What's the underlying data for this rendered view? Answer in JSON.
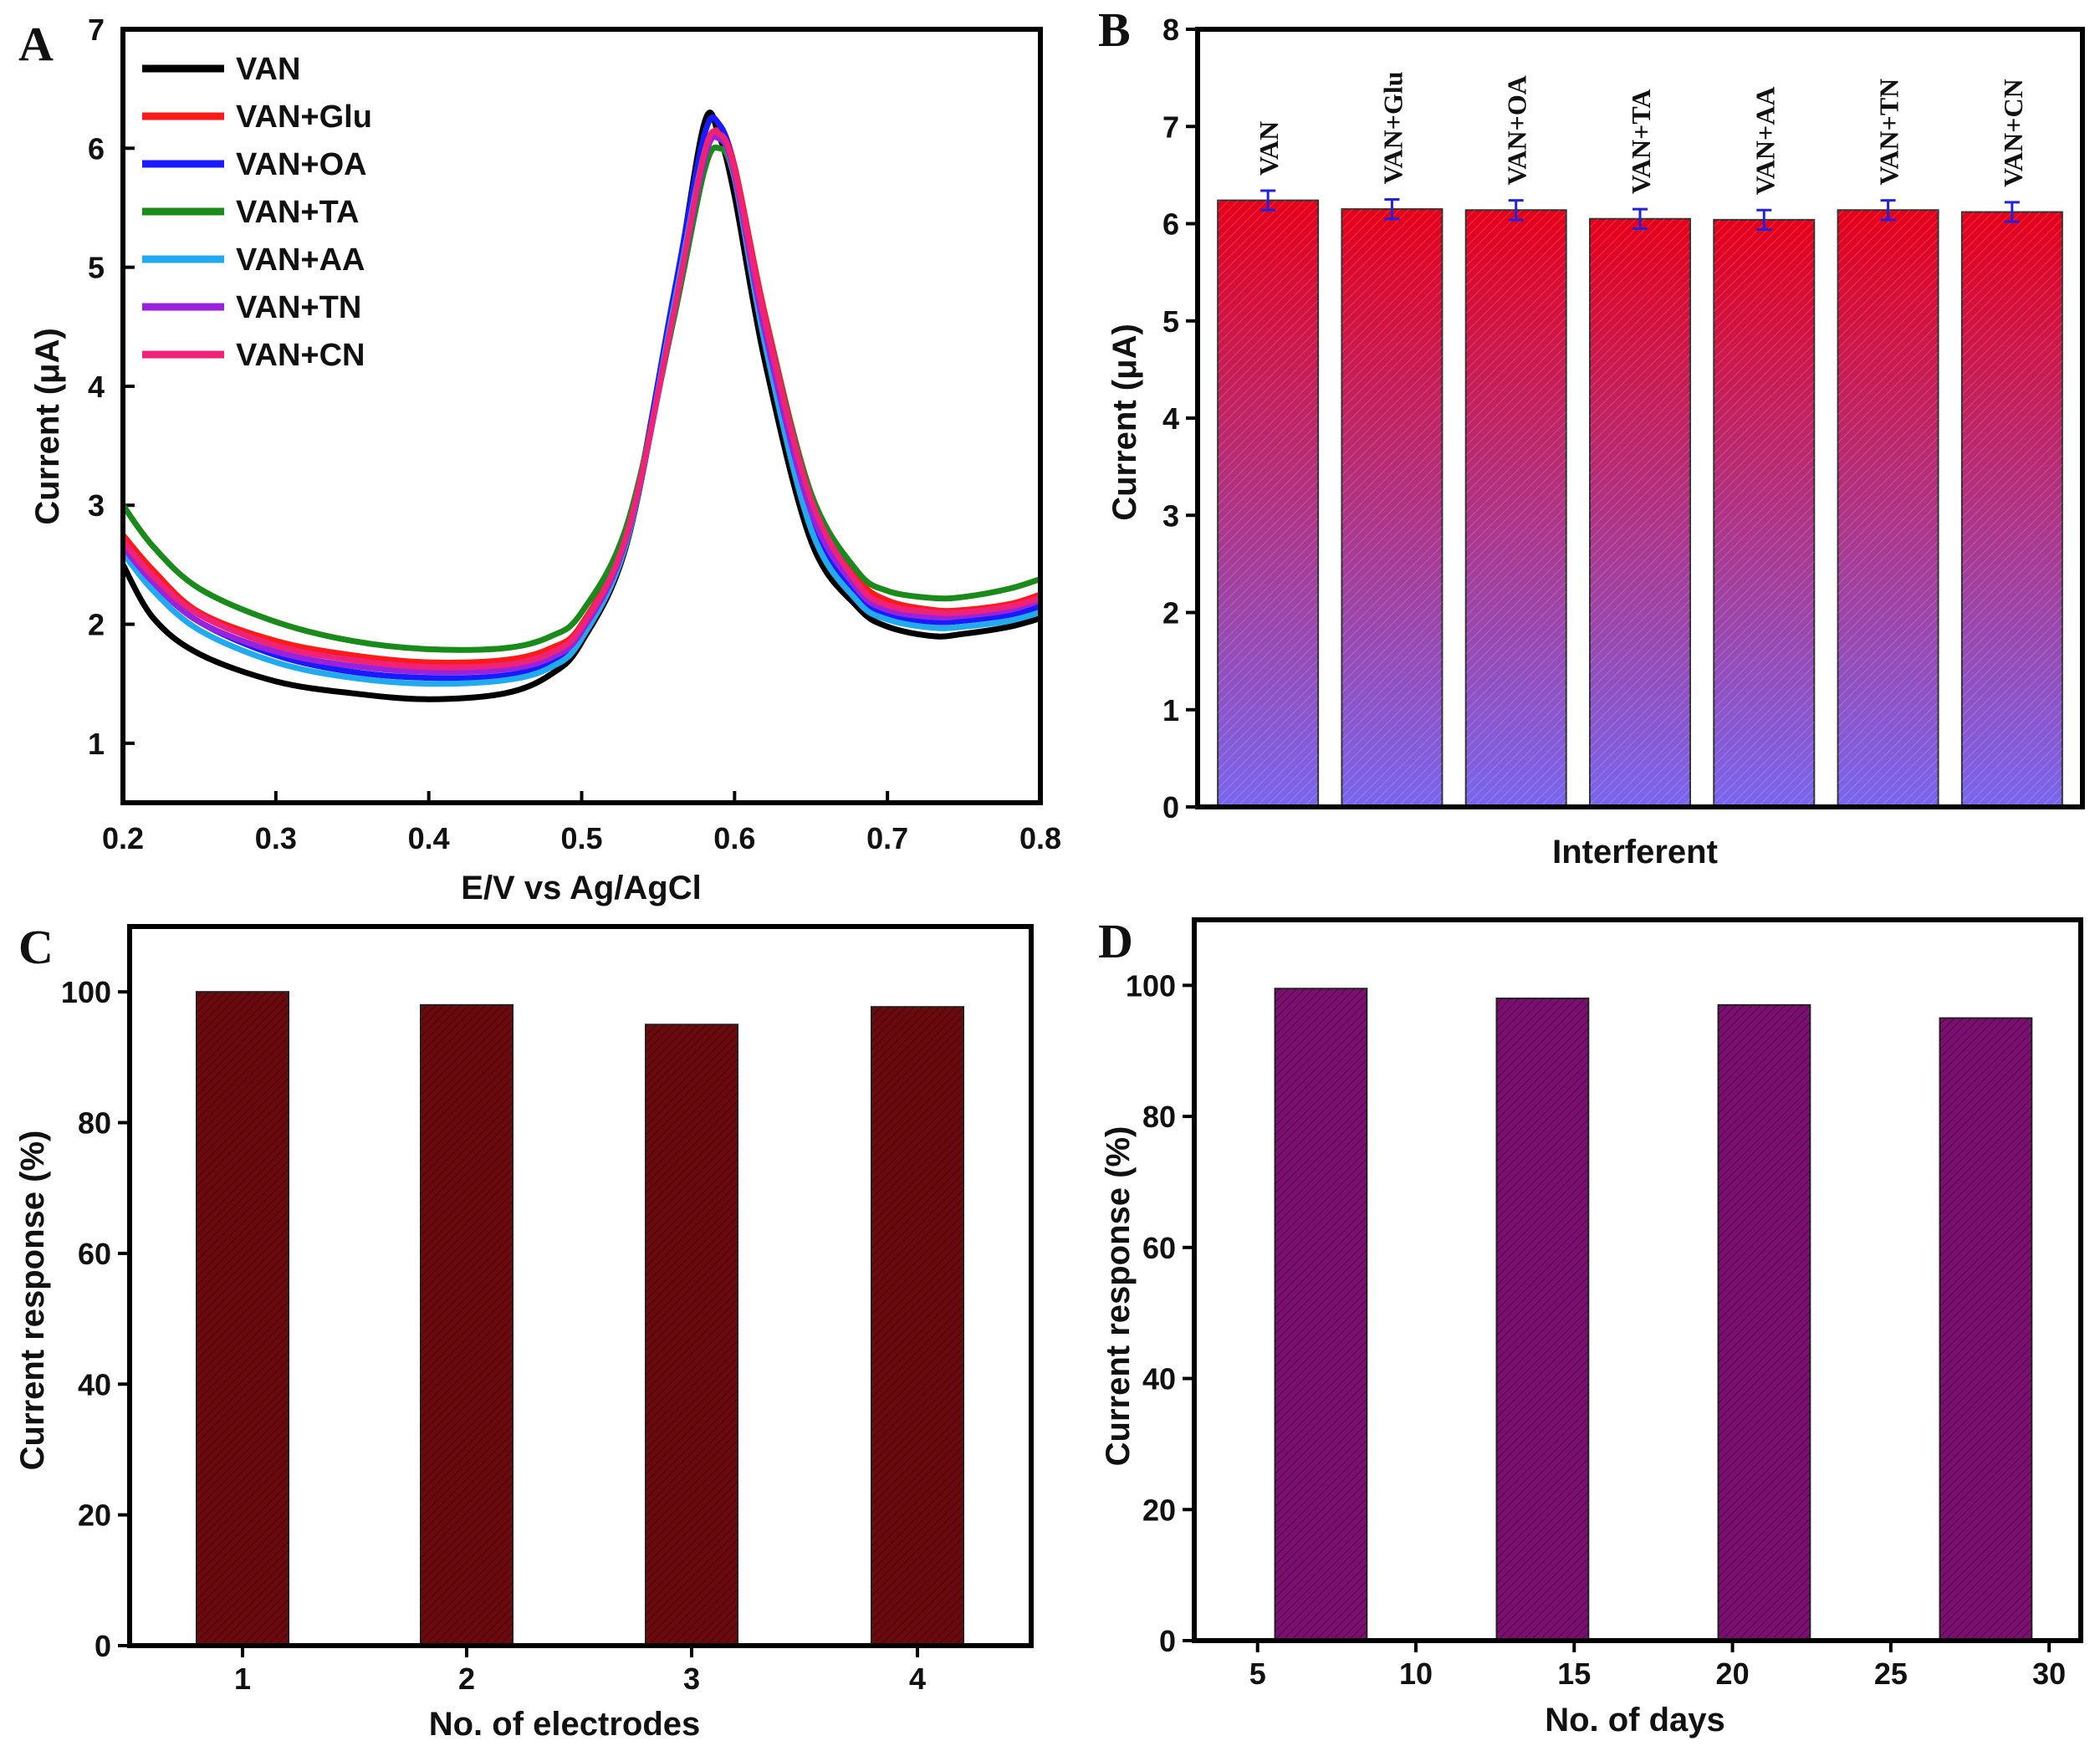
{
  "chart_data": [
    {
      "panel": "A",
      "type": "line",
      "xlabel": "E/V vs Ag/AgCl",
      "ylabel": "Current (μA)",
      "xlim": [
        0.2,
        0.8
      ],
      "ylim": [
        0.5,
        7
      ],
      "xticks": [
        "0.2",
        "0.3",
        "0.4",
        "0.5",
        "0.6",
        "0.7",
        "0.8"
      ],
      "yticks": [
        "1",
        "2",
        "3",
        "4",
        "5",
        "6",
        "7"
      ],
      "legend_position": "top-left",
      "x": [
        0.2,
        0.22,
        0.25,
        0.3,
        0.35,
        0.4,
        0.45,
        0.48,
        0.5,
        0.53,
        0.56,
        0.58,
        0.59,
        0.6,
        0.62,
        0.65,
        0.68,
        0.7,
        0.73,
        0.75,
        0.78,
        0.8
      ],
      "series": [
        {
          "name": "VAN",
          "color": "#000000",
          "values": [
            2.5,
            2.05,
            1.75,
            1.52,
            1.42,
            1.37,
            1.42,
            1.58,
            1.85,
            2.7,
            4.7,
            6.2,
            6.1,
            5.6,
            4.2,
            2.7,
            2.15,
            1.98,
            1.9,
            1.92,
            1.98,
            2.05
          ]
        },
        {
          "name": "VAN+Glu",
          "color": "#ff1a1a",
          "values": [
            2.75,
            2.45,
            2.1,
            1.86,
            1.74,
            1.68,
            1.7,
            1.8,
            2.0,
            2.8,
            4.6,
            5.9,
            6.15,
            5.85,
            4.6,
            3.1,
            2.4,
            2.2,
            2.12,
            2.12,
            2.17,
            2.25
          ]
        },
        {
          "name": "VAN+OA",
          "color": "#1a1aff",
          "values": [
            2.7,
            2.35,
            2.02,
            1.74,
            1.6,
            1.55,
            1.57,
            1.68,
            1.9,
            2.75,
            4.75,
            6.1,
            6.2,
            5.8,
            4.4,
            2.85,
            2.25,
            2.08,
            2.02,
            2.03,
            2.08,
            2.15
          ]
        },
        {
          "name": "VAN+TA",
          "color": "#1a8a1a",
          "values": [
            3.0,
            2.65,
            2.3,
            2.02,
            1.86,
            1.79,
            1.8,
            1.9,
            2.1,
            2.85,
            4.55,
            5.8,
            6.0,
            5.75,
            4.55,
            3.1,
            2.45,
            2.28,
            2.22,
            2.23,
            2.3,
            2.38
          ]
        },
        {
          "name": "VAN+AA",
          "color": "#22aaee",
          "values": [
            2.6,
            2.28,
            1.95,
            1.68,
            1.55,
            1.5,
            1.53,
            1.64,
            1.88,
            2.72,
            4.65,
            5.95,
            6.1,
            5.75,
            4.35,
            2.8,
            2.2,
            2.04,
            1.97,
            1.98,
            2.03,
            2.1
          ]
        },
        {
          "name": "VAN+TN",
          "color": "#9922dd",
          "values": [
            2.65,
            2.35,
            2.02,
            1.77,
            1.65,
            1.6,
            1.62,
            1.72,
            1.94,
            2.75,
            4.6,
            5.9,
            6.08,
            5.78,
            4.45,
            2.95,
            2.3,
            2.12,
            2.06,
            2.07,
            2.12,
            2.2
          ]
        },
        {
          "name": "VAN+CN",
          "color": "#ee2277",
          "values": [
            2.7,
            2.4,
            2.08,
            1.82,
            1.7,
            1.64,
            1.66,
            1.76,
            1.98,
            2.78,
            4.6,
            5.95,
            6.12,
            5.82,
            4.55,
            3.05,
            2.35,
            2.16,
            2.1,
            2.1,
            2.15,
            2.22
          ]
        }
      ]
    },
    {
      "panel": "B",
      "type": "bar",
      "xlabel": "Interferent",
      "ylabel": "Current (μA)",
      "ylim": [
        0,
        8
      ],
      "yticks": [
        "0",
        "1",
        "2",
        "3",
        "4",
        "5",
        "6",
        "7",
        "8"
      ],
      "categories": [
        "VAN",
        "VAN+Glu",
        "VAN+OA",
        "VAN+TA",
        "VAN+AA",
        "VAN+TN",
        "VAN+CN"
      ],
      "values": [
        6.24,
        6.15,
        6.14,
        6.05,
        6.04,
        6.14,
        6.12
      ],
      "errors": [
        0.1,
        0.1,
        0.1,
        0.1,
        0.1,
        0.1,
        0.1
      ],
      "bar_color_top": "#e6001a",
      "bar_color_bottom": "#7a66ee",
      "error_color": "#2222dd"
    },
    {
      "panel": "C",
      "type": "bar",
      "xlabel": "No. of electrodes",
      "ylabel": "Current response (%)",
      "ylim": [
        0,
        110
      ],
      "yticks": [
        "0",
        "20",
        "40",
        "60",
        "80",
        "100"
      ],
      "categories": [
        "1",
        "2",
        "3",
        "4"
      ],
      "values": [
        100,
        98,
        95,
        97.7
      ],
      "bar_color": "#6b0a0e"
    },
    {
      "panel": "D",
      "type": "bar",
      "xlabel": "No. of days",
      "ylabel": "Current response (%)",
      "xlim": [
        3,
        31
      ],
      "ylim": [
        0,
        110
      ],
      "yticks": [
        "0",
        "20",
        "40",
        "60",
        "80",
        "100"
      ],
      "xticks": [
        "5",
        "10",
        "15",
        "20",
        "25",
        "30"
      ],
      "x": [
        7,
        14,
        21,
        28
      ],
      "values": [
        99.5,
        98,
        97,
        95
      ],
      "bar_color": "#7a0f70"
    }
  ]
}
